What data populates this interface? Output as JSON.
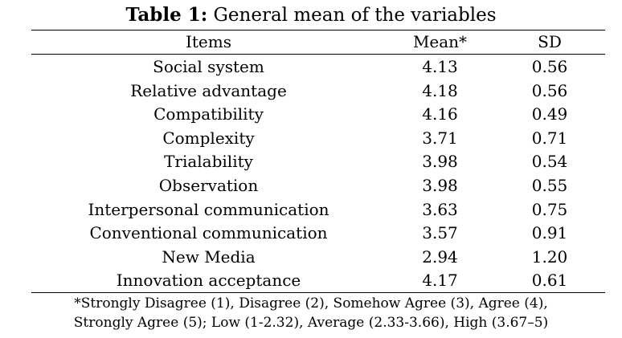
{
  "table": {
    "caption_lead": "Table 1:",
    "caption_text": " General mean of the variables",
    "headers": {
      "items": "Items",
      "mean": "Mean*",
      "sd": "SD"
    },
    "rows": [
      {
        "item": "Social system",
        "mean": "4.13",
        "sd": "0.56"
      },
      {
        "item": "Relative advantage",
        "mean": "4.18",
        "sd": "0.56"
      },
      {
        "item": "Compatibility",
        "mean": "4.16",
        "sd": "0.49"
      },
      {
        "item": "Complexity",
        "mean": "3.71",
        "sd": "0.71"
      },
      {
        "item": "Trialability",
        "mean": "3.98",
        "sd": "0.54"
      },
      {
        "item": "Observation",
        "mean": "3.98",
        "sd": "0.55"
      },
      {
        "item": "Interpersonal communication",
        "mean": "3.63",
        "sd": "0.75"
      },
      {
        "item": "Conventional communication",
        "mean": "3.57",
        "sd": "0.91"
      },
      {
        "item": "New Media",
        "mean": "2.94",
        "sd": "1.20"
      },
      {
        "item": "Innovation acceptance",
        "mean": "4.17",
        "sd": "0.61"
      }
    ],
    "footnote_line1": "*Strongly Disagree (1), Disagree (2), Somehow Agree (3), Agree (4),",
    "footnote_line2": "Strongly Agree (5); Low (1-2.32), Average (2.33-3.66), High (3.67–5)"
  }
}
